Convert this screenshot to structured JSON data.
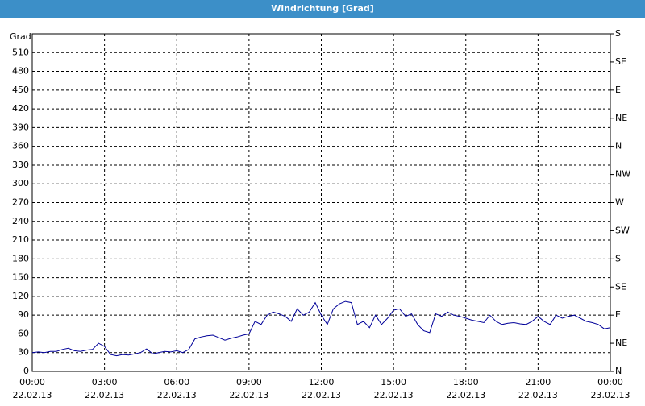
{
  "chart_data": {
    "type": "line",
    "title": "Windrichtung [Grad]",
    "ylabel": "Grad",
    "x": [
      0,
      0.25,
      0.5,
      0.75,
      1,
      1.25,
      1.5,
      1.75,
      2,
      2.25,
      2.5,
      2.75,
      3,
      3.25,
      3.5,
      3.75,
      4,
      4.25,
      4.5,
      4.75,
      5,
      5.25,
      5.5,
      5.75,
      6,
      6.25,
      6.5,
      6.75,
      7,
      7.25,
      7.5,
      7.75,
      8,
      8.25,
      8.5,
      8.75,
      9,
      9.25,
      9.5,
      9.75,
      10,
      10.25,
      10.5,
      10.75,
      11,
      11.25,
      11.5,
      11.75,
      12,
      12.25,
      12.5,
      12.75,
      13,
      13.25,
      13.5,
      13.75,
      14,
      14.25,
      14.5,
      14.75,
      15,
      15.25,
      15.5,
      15.75,
      16,
      16.25,
      16.5,
      16.75,
      17,
      17.25,
      17.5,
      17.75,
      18,
      18.25,
      18.5,
      18.75,
      19,
      19.25,
      19.5,
      19.75,
      20,
      20.25,
      20.5,
      20.75,
      21,
      21.25,
      21.5,
      21.75,
      22,
      22.25,
      22.5,
      22.75,
      23,
      23.25,
      23.5,
      23.75,
      24
    ],
    "series": [
      {
        "name": "Windrichtung",
        "color": "#000099",
        "values": [
          30,
          31,
          30,
          32,
          32,
          35,
          37,
          33,
          32,
          34,
          35,
          45,
          40,
          27,
          25,
          27,
          26,
          28,
          30,
          36,
          28,
          30,
          32,
          31,
          33,
          30,
          35,
          52,
          55,
          57,
          58,
          54,
          50,
          53,
          55,
          58,
          60,
          80,
          75,
          90,
          95,
          92,
          88,
          80,
          100,
          90,
          95,
          110,
          90,
          75,
          100,
          108,
          112,
          110,
          75,
          80,
          70,
          90,
          75,
          85,
          98,
          100,
          88,
          92,
          75,
          65,
          62,
          92,
          88,
          95,
          90,
          88,
          85,
          82,
          80,
          78,
          90,
          80,
          75,
          77,
          78,
          76,
          75,
          80,
          88,
          80,
          75,
          90,
          85,
          88,
          90,
          85,
          80,
          78,
          75,
          68,
          70
        ]
      }
    ],
    "xlim": [
      0,
      24
    ],
    "xticks": [
      {
        "value": 0,
        "label": "00:00"
      },
      {
        "value": 3,
        "label": "03:00"
      },
      {
        "value": 6,
        "label": "06:00"
      },
      {
        "value": 9,
        "label": "09:00"
      },
      {
        "value": 12,
        "label": "12:00"
      },
      {
        "value": 15,
        "label": "15:00"
      },
      {
        "value": 18,
        "label": "18:00"
      },
      {
        "value": 21,
        "label": "21:00"
      },
      {
        "value": 24,
        "label": "00:00"
      }
    ],
    "xtick_dates": [
      "22.02.13",
      "22.02.13",
      "22.02.13",
      "22.02.13",
      "22.02.13",
      "22.02.13",
      "22.02.13",
      "22.02.13",
      "23.02.13"
    ],
    "ylim": [
      0,
      540
    ],
    "yticks": [
      0,
      30,
      60,
      90,
      120,
      150,
      180,
      210,
      240,
      270,
      300,
      330,
      360,
      390,
      420,
      450,
      480,
      510
    ],
    "y2lim": [
      0,
      540
    ],
    "y2ticks": [
      {
        "value": 0,
        "label": "N"
      },
      {
        "value": 45,
        "label": "NE"
      },
      {
        "value": 90,
        "label": "E"
      },
      {
        "value": 135,
        "label": "SE"
      },
      {
        "value": 180,
        "label": "S"
      },
      {
        "value": 225,
        "label": "SW"
      },
      {
        "value": 270,
        "label": "W"
      },
      {
        "value": 315,
        "label": "NW"
      },
      {
        "value": 360,
        "label": "N"
      },
      {
        "value": 405,
        "label": "NE"
      },
      {
        "value": 450,
        "label": "E"
      },
      {
        "value": 495,
        "label": "SE"
      },
      {
        "value": 540,
        "label": "S"
      }
    ],
    "grid": true
  }
}
